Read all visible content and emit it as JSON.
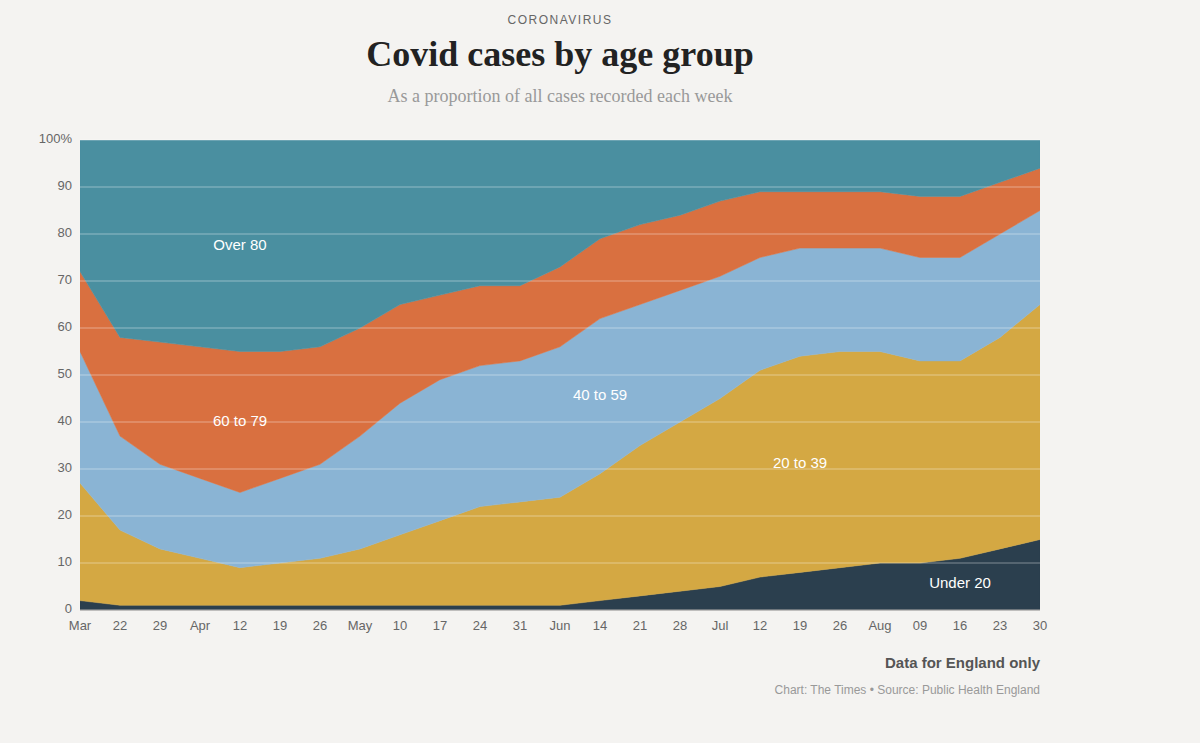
{
  "chart_data": {
    "type": "area",
    "stacked": true,
    "supertitle": "CORONAVIRUS",
    "title": "Covid cases by age group",
    "subtitle": "As a proportion of all cases recorded each week",
    "notes": [
      "Data for England only",
      "Chart: The Times • Source: Public Health England"
    ],
    "categories": [
      "Mar",
      "22",
      "29",
      "Apr",
      "12",
      "19",
      "26",
      "May",
      "10",
      "17",
      "24",
      "31",
      "Jun",
      "14",
      "21",
      "28",
      "Jul",
      "12",
      "19",
      "26",
      "Aug",
      "09",
      "16",
      "23",
      "30"
    ],
    "series": [
      {
        "name": "Under 20",
        "color": "#2b3f4e",
        "values": [
          2,
          1,
          1,
          1,
          1,
          1,
          1,
          1,
          1,
          1,
          1,
          1,
          1,
          2,
          3,
          4,
          5,
          7,
          8,
          9,
          10,
          10,
          11,
          13,
          15
        ]
      },
      {
        "name": "20 to 39",
        "color": "#d4a843",
        "values": [
          25,
          16,
          12,
          10,
          8,
          9,
          10,
          12,
          15,
          18,
          21,
          22,
          23,
          27,
          32,
          36,
          40,
          44,
          46,
          46,
          45,
          43,
          42,
          45,
          50
        ]
      },
      {
        "name": "40 to 59",
        "color": "#8ab4d4",
        "values": [
          28,
          20,
          18,
          17,
          16,
          18,
          20,
          24,
          28,
          30,
          30,
          30,
          32,
          33,
          30,
          28,
          26,
          24,
          23,
          22,
          22,
          22,
          22,
          22,
          20
        ]
      },
      {
        "name": "60 to 79",
        "color": "#d97040",
        "values": [
          17,
          21,
          26,
          28,
          30,
          27,
          25,
          23,
          21,
          18,
          17,
          16,
          17,
          17,
          17,
          16,
          16,
          14,
          12,
          12,
          12,
          13,
          13,
          11,
          9
        ]
      },
      {
        "name": "Over 80",
        "color": "#4a8fa0",
        "values": [
          28,
          42,
          43,
          44,
          45,
          45,
          44,
          40,
          35,
          33,
          31,
          31,
          27,
          21,
          18,
          16,
          13,
          11,
          11,
          11,
          11,
          12,
          12,
          9,
          6
        ]
      }
    ],
    "ylim": [
      0,
      100
    ],
    "yticks": [
      0,
      10,
      20,
      30,
      40,
      50,
      60,
      70,
      80,
      90,
      {
        "value": 100,
        "label": "100%"
      }
    ],
    "grid": true
  }
}
